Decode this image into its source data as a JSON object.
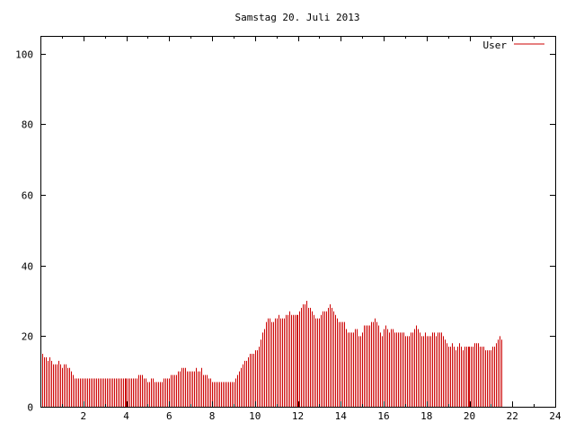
{
  "chart_data": {
    "type": "bar",
    "title": "Samstag 20. Juli 2013",
    "xlabel": "",
    "ylabel": "",
    "xlim": [
      0,
      24
    ],
    "ylim": [
      0,
      105
    ],
    "xticks": [
      "2",
      "4",
      "6",
      "8",
      "10",
      "12",
      "14",
      "16",
      "18",
      "20",
      "22",
      "24"
    ],
    "yticks": [
      "0",
      "20",
      "40",
      "60",
      "80",
      "100"
    ],
    "legend_position": "top-right",
    "grid": false,
    "series": [
      {
        "name": "User",
        "color": "#cc0000",
        "x_start": 0,
        "x_step": 0.0833333,
        "values": [
          15,
          15,
          14,
          14,
          13,
          14,
          13,
          12,
          12,
          12,
          13,
          12,
          11,
          12,
          12,
          11,
          11,
          10,
          9,
          8,
          8,
          8,
          8,
          8,
          8,
          8,
          8,
          8,
          8,
          8,
          8,
          8,
          8,
          8,
          8,
          8,
          8,
          8,
          8,
          8,
          8,
          8,
          8,
          8,
          8,
          8,
          8,
          8,
          8,
          8,
          8,
          8,
          8,
          8,
          8,
          9,
          9,
          9,
          8,
          8,
          7,
          7,
          8,
          8,
          7,
          7,
          7,
          7,
          7,
          8,
          8,
          8,
          8,
          9,
          9,
          9,
          9,
          10,
          10,
          11,
          11,
          11,
          10,
          10,
          10,
          10,
          10,
          11,
          10,
          10,
          11,
          9,
          9,
          9,
          8,
          8,
          7,
          7,
          7,
          7,
          7,
          7,
          7,
          7,
          7,
          7,
          7,
          7,
          7,
          8,
          9,
          10,
          11,
          12,
          13,
          13,
          14,
          15,
          15,
          15,
          16,
          16,
          17,
          19,
          21,
          22,
          24,
          25,
          25,
          24,
          24,
          25,
          25,
          26,
          25,
          25,
          25,
          26,
          26,
          27,
          26,
          26,
          26,
          26,
          26,
          27,
          28,
          29,
          29,
          30,
          28,
          28,
          27,
          26,
          25,
          25,
          25,
          26,
          27,
          27,
          27,
          28,
          29,
          28,
          27,
          26,
          25,
          24,
          24,
          24,
          24,
          22,
          21,
          21,
          21,
          21,
          22,
          22,
          20,
          20,
          21,
          23,
          23,
          23,
          23,
          24,
          24,
          25,
          24,
          23,
          21,
          20,
          22,
          23,
          22,
          21,
          22,
          22,
          21,
          21,
          21,
          21,
          21,
          21,
          20,
          20,
          20,
          21,
          21,
          22,
          23,
          22,
          21,
          20,
          20,
          21,
          20,
          20,
          20,
          21,
          21,
          20,
          21,
          21,
          21,
          20,
          19,
          18,
          17,
          17,
          18,
          17,
          16,
          17,
          18,
          17,
          16,
          17,
          17,
          17,
          17,
          17,
          17,
          18,
          18,
          18,
          17,
          17,
          17,
          16,
          16,
          16,
          16,
          17,
          17,
          18,
          19,
          20,
          19
        ]
      }
    ]
  }
}
